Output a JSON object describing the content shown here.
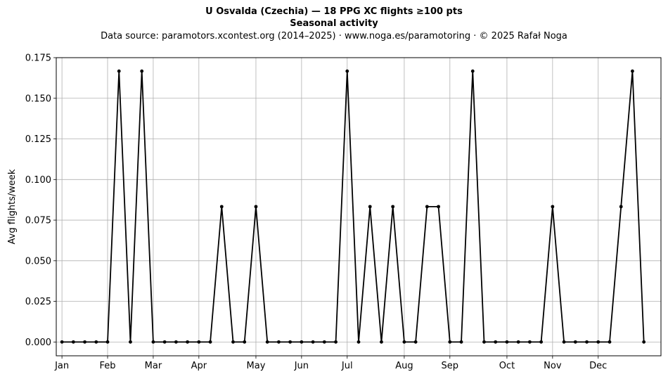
{
  "chart_data": {
    "type": "line",
    "title": "U Osvalda (Czechia)  —  18 PPG XC flights ≥100 pts",
    "subtitle": "Seasonal activity",
    "source": "Data source: paramotors.xcontest.org (2014–2025)  ·  www.noga.es/paramotoring  ·  © 2025 Rafał Noga",
    "xlabel": "",
    "ylabel": "Avg flights/week",
    "ylim": [
      -0.0085,
      0.175
    ],
    "xlim": [
      -0.5,
      52.5
    ],
    "grid": true,
    "x_ticks": [
      {
        "label": "Jan",
        "week": 0
      },
      {
        "label": "Feb",
        "week": 4
      },
      {
        "label": "Mar",
        "week": 8
      },
      {
        "label": "Apr",
        "week": 12
      },
      {
        "label": "May",
        "week": 17
      },
      {
        "label": "Jun",
        "week": 21
      },
      {
        "label": "Jul",
        "week": 25
      },
      {
        "label": "Aug",
        "week": 30
      },
      {
        "label": "Sep",
        "week": 34
      },
      {
        "label": "Oct",
        "week": 39
      },
      {
        "label": "Nov",
        "week": 43
      },
      {
        "label": "Dec",
        "week": 47
      }
    ],
    "y_ticks": [
      "0.000",
      "0.025",
      "0.050",
      "0.075",
      "0.100",
      "0.125",
      "0.150",
      "0.175"
    ],
    "series": [
      {
        "name": "",
        "color": "#000000",
        "values": [
          0,
          0,
          0,
          0,
          0,
          0.1667,
          0,
          0.1667,
          0,
          0,
          0,
          0,
          0,
          0,
          0.0833,
          0,
          0,
          0.0833,
          0,
          0,
          0,
          0,
          0,
          0,
          0,
          0.1667,
          0,
          0.0833,
          0,
          0.0833,
          0,
          0,
          0.0833,
          0.0833,
          0,
          0,
          0.1667,
          0,
          0,
          0,
          0,
          0,
          0,
          0.0833,
          0,
          0,
          0,
          0,
          0,
          0.0833,
          0.1667,
          0
        ]
      }
    ]
  }
}
